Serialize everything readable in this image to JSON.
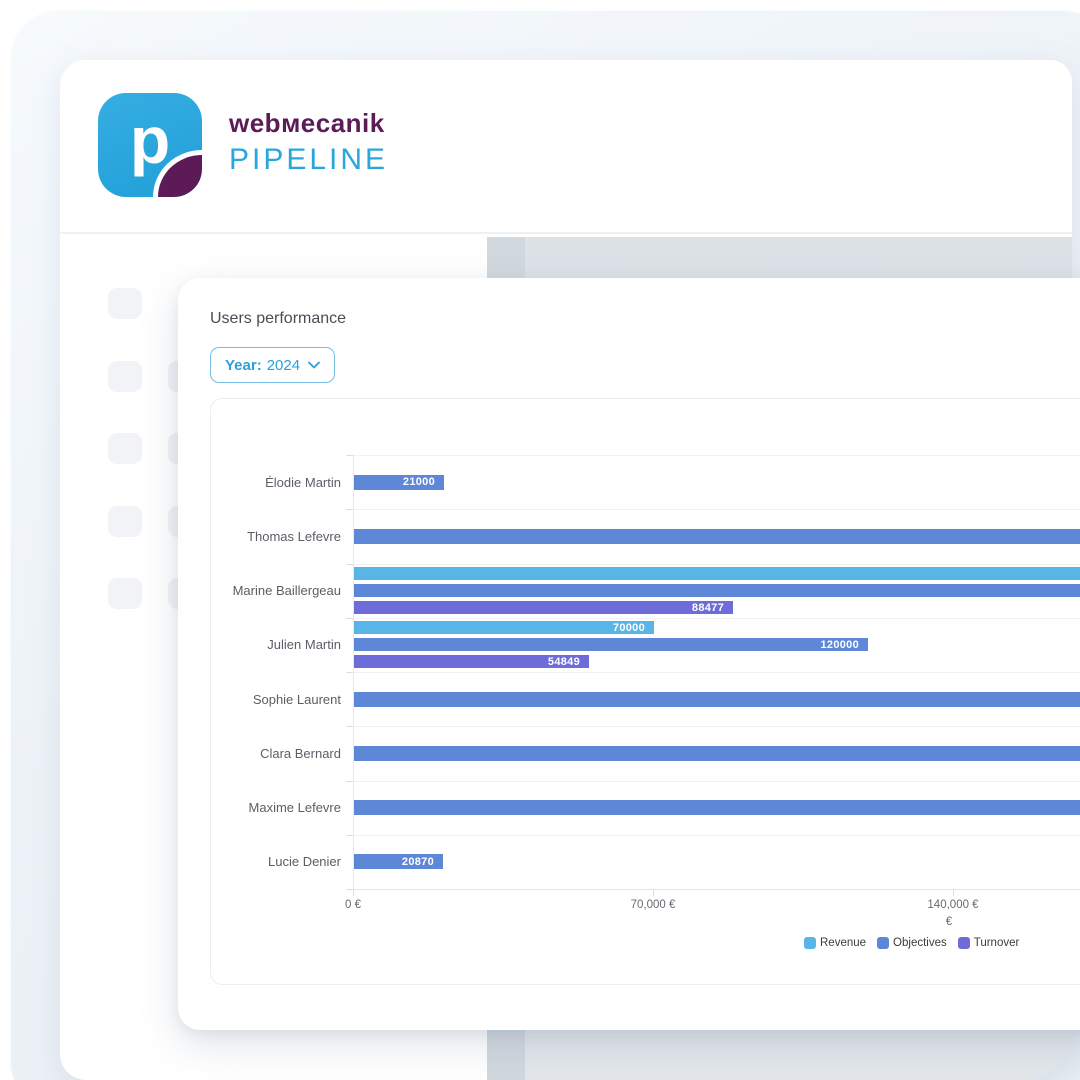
{
  "brand": {
    "logo_letter": "p",
    "name": "webмecanik",
    "product": "PIPELINE",
    "logo_bg": "#29a6dc",
    "logo_corner_color": "#5c1a56",
    "name_color": "#5c1a56",
    "product_color": "#29a7dc"
  },
  "panel": {
    "title": "Users performance",
    "year_filter": {
      "label": "Year:",
      "value": "2024"
    }
  },
  "chart_data": {
    "type": "bar",
    "orientation": "horizontal",
    "title": "Users performance",
    "xlabel": "€",
    "x_ticks": [
      "0 €",
      "70,000 €",
      "140,000 €"
    ],
    "x_tick_values": [
      0,
      70000,
      140000
    ],
    "grid": true,
    "legend_position": "bottom-right",
    "categories": [
      "Élodie Martin",
      "Thomas Lefevre",
      "Marine Baillergeau",
      "Julien Martin",
      "Sophie Laurent",
      "Clara Bernard",
      "Maxime Lefevre",
      "Lucie Denier"
    ],
    "series": [
      {
        "name": "Revenue",
        "color": "#58b5e6"
      },
      {
        "name": "Objectives",
        "color": "#5e87d8"
      },
      {
        "name": "Turnover",
        "color": "#6e6cd8"
      }
    ],
    "rows": [
      {
        "category": "Élodie Martin",
        "bars": [
          {
            "series": "Objectives",
            "value": 21000,
            "label": "21000",
            "cutoff": false
          }
        ]
      },
      {
        "category": "Thomas Lefevre",
        "bars": [
          {
            "series": "Objectives",
            "value": null,
            "label": "",
            "cutoff": true
          }
        ]
      },
      {
        "category": "Marine Baillergeau",
        "bars": [
          {
            "series": "Revenue",
            "value": null,
            "label": "",
            "cutoff": true
          },
          {
            "series": "Objectives",
            "value": null,
            "label": "",
            "cutoff": true
          },
          {
            "series": "Turnover",
            "value": 88477,
            "label": "88477",
            "cutoff": false
          }
        ]
      },
      {
        "category": "Julien Martin",
        "bars": [
          {
            "series": "Revenue",
            "value": 70000,
            "label": "70000",
            "cutoff": false
          },
          {
            "series": "Objectives",
            "value": 120000,
            "label": "120000",
            "cutoff": false
          },
          {
            "series": "Turnover",
            "value": 54849,
            "label": "54849",
            "cutoff": false
          }
        ]
      },
      {
        "category": "Sophie Laurent",
        "bars": [
          {
            "series": "Objectives",
            "value": null,
            "label": "",
            "cutoff": true
          }
        ]
      },
      {
        "category": "Clara Bernard",
        "bars": [
          {
            "series": "Objectives",
            "value": null,
            "label": "",
            "cutoff": true
          }
        ]
      },
      {
        "category": "Maxime Lefevre",
        "bars": [
          {
            "series": "Objectives",
            "value": null,
            "label": "",
            "cutoff": true
          }
        ]
      },
      {
        "category": "Lucie Denier",
        "bars": [
          {
            "series": "Objectives",
            "value": 20870,
            "label": "20870",
            "cutoff": false
          }
        ]
      }
    ]
  }
}
